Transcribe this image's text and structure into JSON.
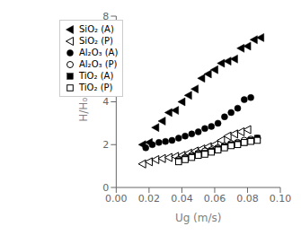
{
  "chart_data": {
    "type": "scatter",
    "x_label": "Ug (m/s)",
    "y_label": "H/H₀ (-)",
    "xlim": [
      0.0,
      0.1
    ],
    "ylim": [
      0,
      8
    ],
    "xticks": [
      {
        "value": 0.0,
        "label": "0.00"
      },
      {
        "value": 0.02,
        "label": "0.02"
      },
      {
        "value": 0.04,
        "label": "0.04"
      },
      {
        "value": 0.06,
        "label": "0.06"
      },
      {
        "value": 0.08,
        "label": "0.08"
      },
      {
        "value": 0.1,
        "label": "0.10"
      }
    ],
    "yticks": [
      0,
      2,
      4,
      6,
      8
    ],
    "grid": false,
    "legend": "upper left",
    "series": [
      {
        "name": "SiO₂ (A)",
        "color": "#000000",
        "marker": "triangle-left-filled",
        "x": [
          0.016,
          0.02,
          0.024,
          0.028,
          0.032,
          0.036,
          0.04,
          0.044,
          0.048,
          0.052,
          0.056,
          0.06,
          0.064,
          0.068,
          0.072,
          0.076,
          0.08,
          0.084,
          0.088
        ],
        "values": [
          2.0,
          2.1,
          2.8,
          3.1,
          3.5,
          3.6,
          4.0,
          4.3,
          4.6,
          5.1,
          5.3,
          5.5,
          5.8,
          5.9,
          6.0,
          6.5,
          6.6,
          6.9,
          7.0
        ]
      },
      {
        "name": "SiO₂ (P)",
        "color": "#000000",
        "marker": "triangle-left-open",
        "x": [
          0.016,
          0.02,
          0.024,
          0.028,
          0.032,
          0.036,
          0.04,
          0.044,
          0.048,
          0.052,
          0.056,
          0.06,
          0.064,
          0.068,
          0.072,
          0.076,
          0.08
        ],
        "values": [
          1.1,
          1.2,
          1.3,
          1.35,
          1.4,
          1.45,
          1.5,
          1.6,
          1.7,
          1.8,
          1.9,
          2.0,
          2.2,
          2.4,
          2.5,
          2.6,
          2.7
        ]
      },
      {
        "name": "Al₂O₃ (A)",
        "color": "#000000",
        "marker": "circle-filled",
        "x": [
          0.018,
          0.022,
          0.026,
          0.03,
          0.034,
          0.038,
          0.042,
          0.046,
          0.05,
          0.054,
          0.058,
          0.062,
          0.066,
          0.07,
          0.074,
          0.078,
          0.082
        ],
        "values": [
          1.85,
          2.0,
          2.1,
          2.15,
          2.2,
          2.3,
          2.4,
          2.5,
          2.6,
          2.75,
          2.85,
          3.0,
          3.3,
          3.5,
          3.7,
          4.1,
          4.2
        ]
      },
      {
        "name": "Al₂O₃ (P)",
        "color": "#000000",
        "marker": "circle-open",
        "x": [
          0.038,
          0.042,
          0.046,
          0.05,
          0.054,
          0.058,
          0.062,
          0.066,
          0.07,
          0.074,
          0.078,
          0.082,
          0.086
        ],
        "values": [
          1.3,
          1.4,
          1.5,
          1.6,
          1.7,
          1.75,
          1.85,
          1.95,
          2.05,
          2.1,
          2.2,
          2.25,
          2.3
        ]
      },
      {
        "name": "TiO₂ (A)",
        "color": "#000000",
        "marker": "square-filled",
        "x": [
          0.038,
          0.042,
          0.046,
          0.05,
          0.054,
          0.058,
          0.062,
          0.066,
          0.07,
          0.074,
          0.078,
          0.082,
          0.086
        ],
        "values": [
          1.25,
          1.35,
          1.45,
          1.55,
          1.6,
          1.7,
          1.8,
          1.9,
          2.0,
          2.05,
          2.1,
          2.2,
          2.3
        ]
      },
      {
        "name": "TiO₂ (P)",
        "color": "#000000",
        "marker": "square-open",
        "x": [
          0.038,
          0.042,
          0.046,
          0.05,
          0.054,
          0.058,
          0.062,
          0.066,
          0.07,
          0.074,
          0.078,
          0.082,
          0.086
        ],
        "values": [
          1.2,
          1.3,
          1.4,
          1.5,
          1.55,
          1.65,
          1.75,
          1.85,
          1.95,
          2.0,
          2.1,
          2.15,
          2.2
        ]
      }
    ]
  }
}
